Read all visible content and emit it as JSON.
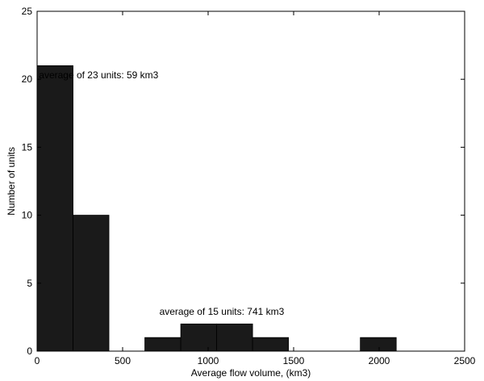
{
  "chart_data": {
    "type": "bar",
    "title": "",
    "xlabel": "Average flow volume, (km3)",
    "ylabel": "Number of units",
    "xlim": [
      0,
      2500
    ],
    "ylim": [
      0,
      25
    ],
    "xticks": [
      0,
      500,
      1000,
      1500,
      2000,
      2500
    ],
    "yticks": [
      0,
      5,
      10,
      15,
      20,
      25
    ],
    "grid": false,
    "bar_color": "#1a1a1a",
    "bins": [
      {
        "x0": 0,
        "x1": 210,
        "value": 21
      },
      {
        "x0": 210,
        "x1": 420,
        "value": 10
      },
      {
        "x0": 630,
        "x1": 840,
        "value": 1
      },
      {
        "x0": 840,
        "x1": 1050,
        "value": 2
      },
      {
        "x0": 1050,
        "x1": 1260,
        "value": 2
      },
      {
        "x0": 1260,
        "x1": 1470,
        "value": 1
      },
      {
        "x0": 1890,
        "x1": 2100,
        "value": 1
      }
    ],
    "annotations": [
      {
        "text": "average of 23 units: 59 km3",
        "x": 360,
        "y": 20.3
      },
      {
        "text": "average of 15 units: 741 km3",
        "x": 1080,
        "y": 2.9
      }
    ]
  }
}
